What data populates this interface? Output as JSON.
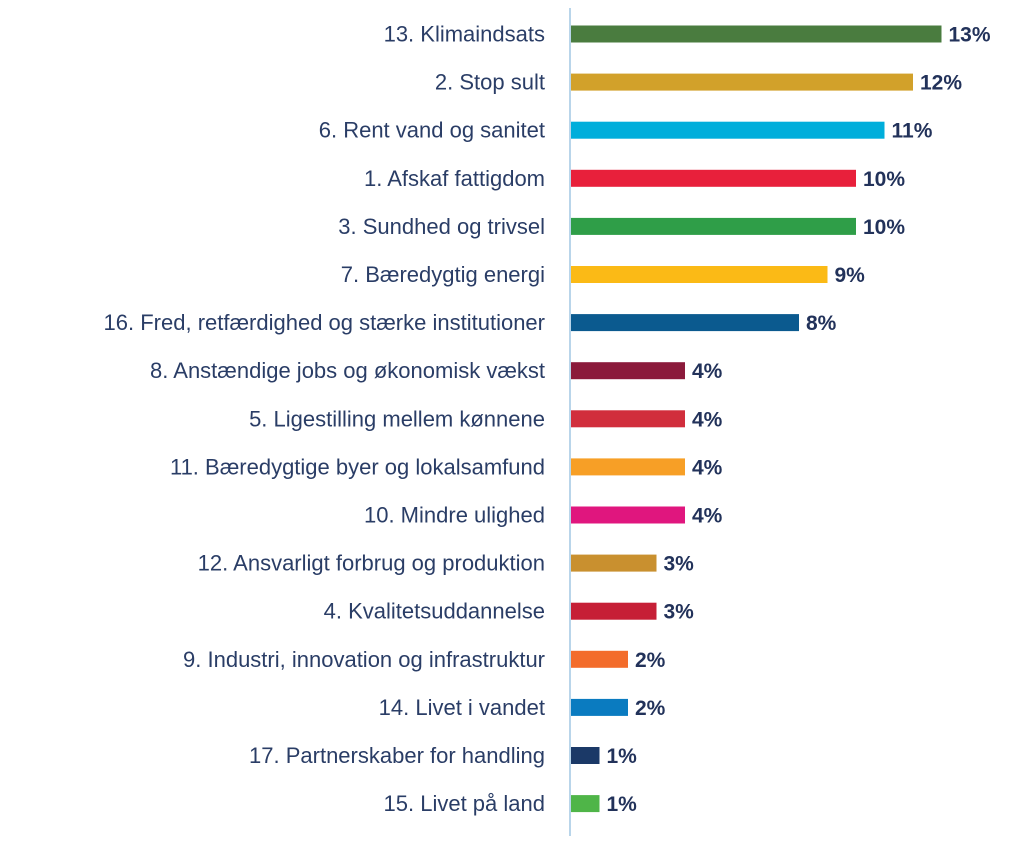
{
  "chart_data": {
    "type": "bar",
    "orientation": "horizontal",
    "title": "",
    "xlabel": "",
    "ylabel": "",
    "xlim": [
      0,
      13
    ],
    "grid": false,
    "legend": "none",
    "value_suffix": "%",
    "categories": [
      "13. Klimaindsats",
      "2. Stop sult",
      "6. Rent vand og sanitet",
      "1. Afskaf fattigdom",
      "3. Sundhed og trivsel",
      "7. Bæredygtig energi",
      "16. Fred, retfærdighed og stærke institutioner",
      "8. Anstændige jobs og økonomisk vækst",
      "5. Ligestilling mellem kønnene",
      "11. Bæredygtige byer og lokalsamfund",
      "10. Mindre ulighed",
      "12. Ansvarligt forbrug og produktion",
      "4. Kvalitetsuddannelse",
      "9. Industri, innovation og infrastruktur",
      "14. Livet i vandet",
      "17. Partnerskaber for handling",
      "15. Livet på land"
    ],
    "values": [
      13,
      12,
      11,
      10,
      10,
      9,
      8,
      4,
      4,
      4,
      4,
      3,
      3,
      2,
      2,
      1,
      1
    ],
    "value_labels": [
      "13%",
      "12%",
      "11%",
      "10%",
      "10%",
      "9%",
      "8%",
      "4%",
      "4%",
      "4%",
      "4%",
      "3%",
      "3%",
      "2%",
      "2%",
      "1%",
      "1%"
    ],
    "colors": [
      "#4a7c3f",
      "#d2a12a",
      "#00aedb",
      "#e8203b",
      "#2f9e48",
      "#fbba16",
      "#0b5a8f",
      "#8b1a3b",
      "#d12e3c",
      "#f79f26",
      "#e0167e",
      "#c9902f",
      "#c61f36",
      "#f36c2b",
      "#0a7bc0",
      "#1b3967",
      "#4fb548"
    ]
  },
  "colors": {
    "axis_line": "#b9d5ea",
    "category_text": "#2a3d66",
    "value_text": "#22325a"
  }
}
